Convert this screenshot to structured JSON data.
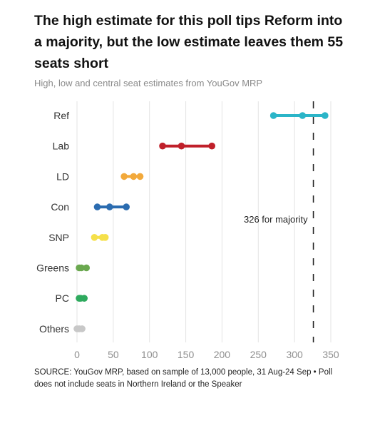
{
  "header": {
    "title": "The high estimate for this poll tips Reform into a majority, but the low estimate leaves them 55 seats short",
    "subtitle": "High, low and central seat estimates from YouGov MRP"
  },
  "footer": {
    "source": "SOURCE: YouGov MRP, based on sample of 13,000 people, 31 Aug-24 Sep • Poll does not include seats in Northern Ireland or the Speaker"
  },
  "chart_data": {
    "type": "dumbbell",
    "xlim": [
      0,
      350
    ],
    "xticks": [
      0,
      50,
      100,
      150,
      200,
      250,
      300,
      350
    ],
    "grid": "vertical",
    "categories": [
      "Ref",
      "Lab",
      "LD",
      "Con",
      "SNP",
      "Greens",
      "PC",
      "Others"
    ],
    "series": [
      {
        "category": "Ref",
        "low": 271,
        "central": 311,
        "high": 342,
        "color": "#2bb5c8"
      },
      {
        "category": "Lab",
        "low": 118,
        "central": 144,
        "high": 186,
        "color": "#c0202a"
      },
      {
        "category": "LD",
        "low": 65,
        "central": 78,
        "high": 87,
        "color": "#f2a93b"
      },
      {
        "category": "Con",
        "low": 28,
        "central": 45,
        "high": 68,
        "color": "#2b6cb0"
      },
      {
        "category": "SNP",
        "low": 24,
        "central": 35,
        "high": 39,
        "color": "#f5e04a"
      },
      {
        "category": "Greens",
        "low": 3,
        "central": 6,
        "high": 13,
        "color": "#6aa84f"
      },
      {
        "category": "PC",
        "low": 3,
        "central": 5,
        "high": 10,
        "color": "#2eaa5e"
      },
      {
        "category": "Others",
        "low": 0,
        "central": 3,
        "high": 7,
        "color": "#c8c8c8"
      }
    ],
    "reference_line": {
      "value": 326,
      "label": "326 for majority"
    }
  }
}
